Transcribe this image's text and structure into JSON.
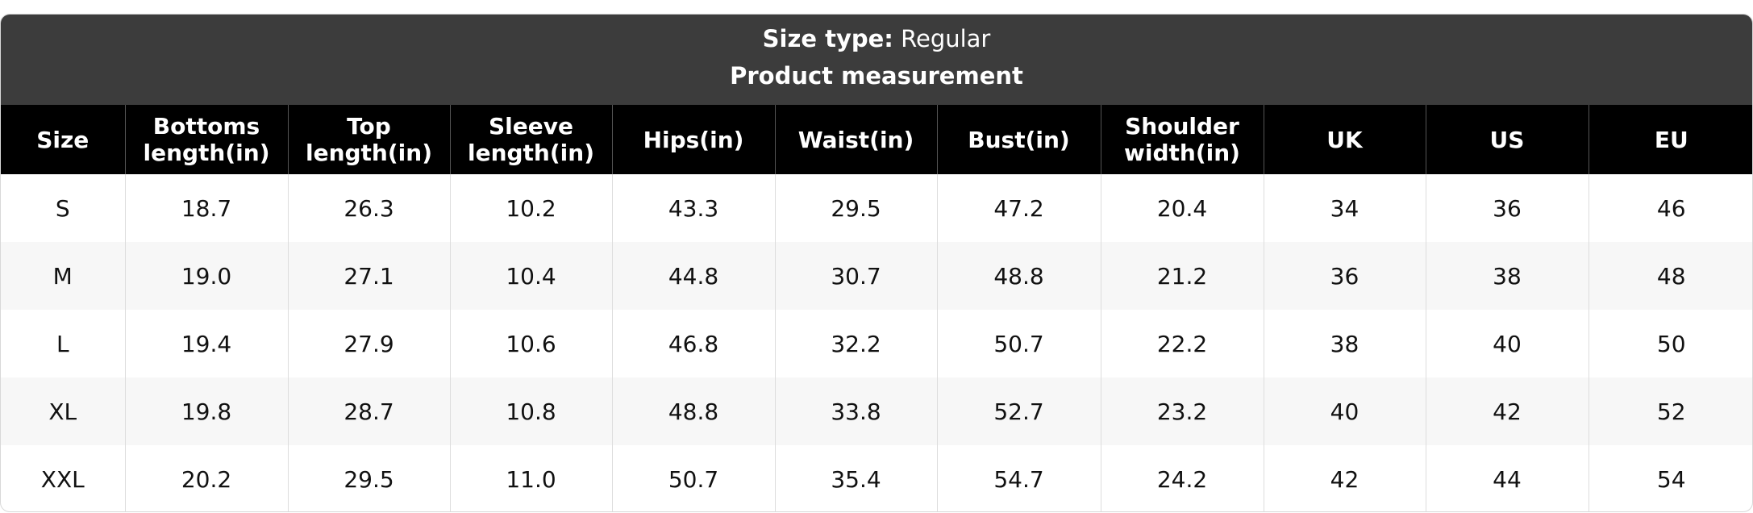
{
  "header": {
    "size_type_label": "Size type:",
    "size_type_value": "Regular",
    "title": "Product measurement"
  },
  "table": {
    "columns": [
      "Size",
      "Bottoms\nlength(in)",
      "Top\nlength(in)",
      "Sleeve\nlength(in)",
      "Hips(in)",
      "Waist(in)",
      "Bust(in)",
      "Shoulder\nwidth(in)",
      "UK",
      "US",
      "EU"
    ],
    "rows": [
      [
        "S",
        "18.7",
        "26.3",
        "10.2",
        "43.3",
        "29.5",
        "47.2",
        "20.4",
        "34",
        "36",
        "46"
      ],
      [
        "M",
        "19.0",
        "27.1",
        "10.4",
        "44.8",
        "30.7",
        "48.8",
        "21.2",
        "36",
        "38",
        "48"
      ],
      [
        "L",
        "19.4",
        "27.9",
        "10.6",
        "46.8",
        "32.2",
        "50.7",
        "22.2",
        "38",
        "40",
        "50"
      ],
      [
        "XL",
        "19.8",
        "28.7",
        "10.8",
        "48.8",
        "33.8",
        "52.7",
        "23.2",
        "40",
        "42",
        "52"
      ],
      [
        "XXL",
        "20.2",
        "29.5",
        "11.0",
        "50.7",
        "35.4",
        "54.7",
        "24.2",
        "42",
        "44",
        "54"
      ]
    ]
  }
}
